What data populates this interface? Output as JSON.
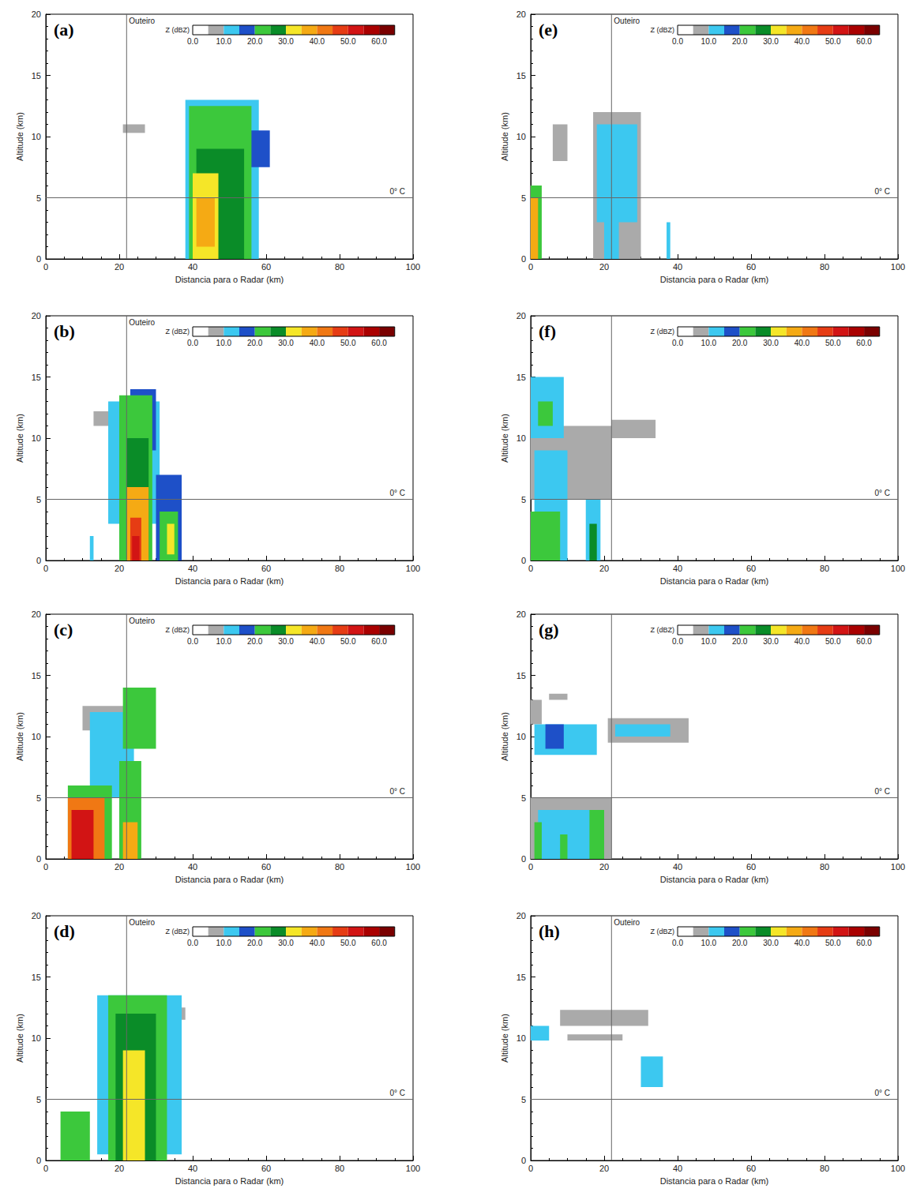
{
  "chart_data": [
    {
      "type": "heatmap",
      "panel": "(a)",
      "xlabel": "Distancia para o Radar (km)",
      "ylabel": "Altitude (km)",
      "xlim": [
        0,
        100
      ],
      "xticks": [
        0,
        20,
        40,
        60,
        80,
        100
      ],
      "ylim": [
        0,
        20
      ],
      "yticks": [
        0,
        5,
        10,
        15,
        20
      ],
      "vline": {
        "x": 22,
        "label": "Outeiro"
      },
      "hline": {
        "y": 5,
        "label": "0° C"
      },
      "colorbar": {
        "label": "Z (dBZ)",
        "bins": [
          0,
          5,
          10,
          15,
          20,
          25,
          30,
          35,
          40,
          45,
          50,
          55,
          60,
          65
        ],
        "colors": [
          "#ffffff",
          "#aaaaaa",
          "#3cc8f0",
          "#1e50c8",
          "#3cc83c",
          "#0a8c28",
          "#f5e628",
          "#f5aa14",
          "#f07814",
          "#e63c14",
          "#d21414",
          "#aa0000",
          "#7a0000"
        ],
        "ticks": [
          {
            "value": 0,
            "label": "0.0"
          },
          {
            "value": 10,
            "label": "10.0"
          },
          {
            "value": 20,
            "label": "20.0"
          },
          {
            "value": 30,
            "label": "30.0"
          },
          {
            "value": 40,
            "label": "40.0"
          },
          {
            "value": 50,
            "label": "50.0"
          },
          {
            "value": 60,
            "label": "60.0"
          }
        ]
      },
      "cells": [
        [
          21,
          27,
          10.3,
          11,
          7
        ],
        [
          38,
          58,
          0,
          13,
          12
        ],
        [
          52,
          61,
          7.5,
          10.5,
          17
        ],
        [
          39,
          56,
          0,
          12.5,
          22
        ],
        [
          41,
          54,
          0,
          9,
          27
        ],
        [
          40,
          47,
          0,
          7,
          32
        ],
        [
          41,
          46,
          1,
          5,
          37
        ]
      ]
    },
    {
      "type": "heatmap",
      "panel": "(b)",
      "xlabel": "Distancia para o Radar (km)",
      "ylabel": "Altitude (km)",
      "xlim": [
        0,
        100
      ],
      "xticks": [
        0,
        20,
        40,
        60,
        80,
        100
      ],
      "ylim": [
        0,
        20
      ],
      "yticks": [
        0,
        5,
        10,
        15,
        20
      ],
      "vline": {
        "x": 22,
        "label": "Outeiro"
      },
      "hline": {
        "y": 5,
        "label": "0° C"
      },
      "colorbar": {
        "label": "Z (dBZ)",
        "bins": [
          0,
          5,
          10,
          15,
          20,
          25,
          30,
          35,
          40,
          45,
          50,
          55,
          60,
          65
        ],
        "colors": [
          "#ffffff",
          "#aaaaaa",
          "#3cc8f0",
          "#1e50c8",
          "#3cc83c",
          "#0a8c28",
          "#f5e628",
          "#f5aa14",
          "#f07814",
          "#e63c14",
          "#d21414",
          "#aa0000",
          "#7a0000"
        ],
        "ticks": [
          {
            "value": 0,
            "label": "0.0"
          },
          {
            "value": 10,
            "label": "10.0"
          },
          {
            "value": 20,
            "label": "20.0"
          },
          {
            "value": 30,
            "label": "30.0"
          },
          {
            "value": 40,
            "label": "40.0"
          },
          {
            "value": 50,
            "label": "50.0"
          },
          {
            "value": 60,
            "label": "60.0"
          }
        ]
      },
      "cells": [
        [
          13,
          25,
          11,
          12.2,
          7
        ],
        [
          17,
          31,
          3,
          13,
          12
        ],
        [
          23,
          30,
          9,
          14,
          17
        ],
        [
          20,
          29,
          0,
          13.5,
          22
        ],
        [
          22,
          28,
          0,
          10,
          27
        ],
        [
          30,
          37,
          0,
          7,
          17
        ],
        [
          31,
          36,
          0,
          4,
          22
        ],
        [
          33,
          35,
          0.5,
          3,
          32
        ],
        [
          22,
          28,
          0,
          6,
          37
        ],
        [
          23,
          26,
          0,
          3.5,
          47
        ],
        [
          23.5,
          25.5,
          0,
          2,
          52
        ],
        [
          12,
          13,
          0,
          2,
          12
        ]
      ]
    },
    {
      "type": "heatmap",
      "panel": "(c)",
      "xlabel": "Distancia para o Radar (km)",
      "ylabel": "Altitude (km)",
      "xlim": [
        0,
        100
      ],
      "xticks": [
        0,
        20,
        40,
        60,
        80,
        100
      ],
      "ylim": [
        0,
        20
      ],
      "yticks": [
        0,
        5,
        10,
        15,
        20
      ],
      "vline": {
        "x": 22,
        "label": "Outeiro"
      },
      "hline": {
        "y": 5,
        "label": "0° C"
      },
      "colorbar": {
        "label": "Z (dBZ)",
        "bins": [
          0,
          5,
          10,
          15,
          20,
          25,
          30,
          35,
          40,
          45,
          50,
          55,
          60,
          65
        ],
        "colors": [
          "#ffffff",
          "#aaaaaa",
          "#3cc8f0",
          "#1e50c8",
          "#3cc83c",
          "#0a8c28",
          "#f5e628",
          "#f5aa14",
          "#f07814",
          "#e63c14",
          "#d21414",
          "#aa0000",
          "#7a0000"
        ],
        "ticks": [
          {
            "value": 0,
            "label": "0.0"
          },
          {
            "value": 10,
            "label": "10.0"
          },
          {
            "value": 20,
            "label": "20.0"
          },
          {
            "value": 30,
            "label": "30.0"
          },
          {
            "value": 40,
            "label": "40.0"
          },
          {
            "value": 50,
            "label": "50.0"
          },
          {
            "value": 60,
            "label": "60.0"
          }
        ]
      },
      "cells": [
        [
          10,
          25,
          10.5,
          12.5,
          7
        ],
        [
          12,
          24,
          5,
          12,
          12
        ],
        [
          21,
          30,
          9,
          14,
          22
        ],
        [
          20,
          26,
          0,
          8,
          22
        ],
        [
          6,
          18,
          0,
          6,
          22
        ],
        [
          6,
          16,
          0,
          5,
          42
        ],
        [
          7,
          13,
          0,
          4,
          52
        ],
        [
          21,
          25,
          0,
          3,
          37
        ]
      ]
    },
    {
      "type": "heatmap",
      "panel": "(d)",
      "xlabel": "Distancia para o Radar (km)",
      "ylabel": "Altitude (km)",
      "xlim": [
        0,
        100
      ],
      "xticks": [
        0,
        20,
        40,
        60,
        80,
        100
      ],
      "ylim": [
        0,
        20
      ],
      "yticks": [
        0,
        5,
        10,
        15,
        20
      ],
      "vline": {
        "x": 22,
        "label": "Outeiro"
      },
      "hline": {
        "y": 5,
        "label": "0° C"
      },
      "colorbar": {
        "label": "Z (dBZ)",
        "bins": [
          0,
          5,
          10,
          15,
          20,
          25,
          30,
          35,
          40,
          45,
          50,
          55,
          60,
          65
        ],
        "colors": [
          "#ffffff",
          "#aaaaaa",
          "#3cc8f0",
          "#1e50c8",
          "#3cc83c",
          "#0a8c28",
          "#f5e628",
          "#f5aa14",
          "#f07814",
          "#e63c14",
          "#d21414",
          "#aa0000",
          "#7a0000"
        ],
        "ticks": [
          {
            "value": 0,
            "label": "0.0"
          },
          {
            "value": 10,
            "label": "10.0"
          },
          {
            "value": 20,
            "label": "20.0"
          },
          {
            "value": 30,
            "label": "30.0"
          },
          {
            "value": 40,
            "label": "40.0"
          },
          {
            "value": 50,
            "label": "50.0"
          },
          {
            "value": 60,
            "label": "60.0"
          }
        ]
      },
      "cells": [
        [
          28,
          38,
          11.5,
          12.5,
          7
        ],
        [
          14,
          37,
          0.5,
          13.5,
          12
        ],
        [
          17,
          33,
          0,
          13.5,
          22
        ],
        [
          19,
          30,
          0,
          12,
          27
        ],
        [
          21,
          27,
          0,
          9,
          32
        ],
        [
          4,
          12,
          0,
          4,
          22
        ]
      ]
    },
    {
      "type": "heatmap",
      "panel": "(e)",
      "xlabel": "Distancia para o Radar (km)",
      "ylabel": "Altitude (km)",
      "xlim": [
        0,
        100
      ],
      "xticks": [
        0,
        20,
        40,
        60,
        80,
        100
      ],
      "ylim": [
        0,
        20
      ],
      "yticks": [
        0,
        5,
        10,
        15,
        20
      ],
      "vline": {
        "x": 22,
        "label": "Outeiro"
      },
      "hline": {
        "y": 5,
        "label": "0° C"
      },
      "colorbar": {
        "label": "Z (dBZ)",
        "bins": [
          0,
          5,
          10,
          15,
          20,
          25,
          30,
          35,
          40,
          45,
          50,
          55,
          60,
          65
        ],
        "colors": [
          "#ffffff",
          "#aaaaaa",
          "#3cc8f0",
          "#1e50c8",
          "#3cc83c",
          "#0a8c28",
          "#f5e628",
          "#f5aa14",
          "#f07814",
          "#e63c14",
          "#d21414",
          "#aa0000",
          "#7a0000"
        ],
        "ticks": [
          {
            "value": 0,
            "label": "0.0"
          },
          {
            "value": 10,
            "label": "10.0"
          },
          {
            "value": 20,
            "label": "20.0"
          },
          {
            "value": 30,
            "label": "30.0"
          },
          {
            "value": 40,
            "label": "40.0"
          },
          {
            "value": 50,
            "label": "50.0"
          },
          {
            "value": 60,
            "label": "60.0"
          }
        ]
      },
      "cells": [
        [
          0,
          3,
          0,
          6,
          22
        ],
        [
          0,
          2,
          0,
          5,
          37
        ],
        [
          6,
          10,
          8,
          11,
          7
        ],
        [
          17,
          30,
          0,
          12,
          7
        ],
        [
          18,
          29,
          3,
          11,
          12
        ],
        [
          20,
          24,
          0,
          8,
          14
        ],
        [
          37,
          38,
          0,
          3,
          14
        ]
      ]
    },
    {
      "type": "heatmap",
      "panel": "(f)",
      "xlabel": "Distancia para o Radar (km)",
      "ylabel": "Altitude (km)",
      "xlim": [
        0,
        100
      ],
      "xticks": [
        0,
        20,
        40,
        60,
        80,
        100
      ],
      "ylim": [
        0,
        20
      ],
      "yticks": [
        0,
        5,
        10,
        15,
        20
      ],
      "vline": {
        "x": 22
      },
      "hline": {
        "y": 5,
        "label": "0° C"
      },
      "colorbar": {
        "label": "Z (dBZ)",
        "bins": [
          0,
          5,
          10,
          15,
          20,
          25,
          30,
          35,
          40,
          45,
          50,
          55,
          60,
          65
        ],
        "colors": [
          "#ffffff",
          "#aaaaaa",
          "#3cc8f0",
          "#1e50c8",
          "#3cc83c",
          "#0a8c28",
          "#f5e628",
          "#f5aa14",
          "#f07814",
          "#e63c14",
          "#d21414",
          "#aa0000",
          "#7a0000"
        ],
        "ticks": [
          {
            "value": 0,
            "label": "0.0"
          },
          {
            "value": 10,
            "label": "10.0"
          },
          {
            "value": 20,
            "label": "20.0"
          },
          {
            "value": 30,
            "label": "30.0"
          },
          {
            "value": 40,
            "label": "40.0"
          },
          {
            "value": 50,
            "label": "50.0"
          },
          {
            "value": 60,
            "label": "60.0"
          }
        ]
      },
      "cells": [
        [
          0,
          22,
          5,
          11,
          7
        ],
        [
          22,
          34,
          10,
          11.5,
          7
        ],
        [
          0,
          9,
          10,
          15,
          12
        ],
        [
          2,
          6,
          11,
          13,
          22
        ],
        [
          1,
          10,
          0,
          9,
          12
        ],
        [
          0,
          8,
          0,
          4,
          22
        ],
        [
          15,
          19,
          0,
          5,
          14
        ],
        [
          16,
          18,
          0,
          3,
          27
        ]
      ]
    },
    {
      "type": "heatmap",
      "panel": "(g)",
      "xlabel": "Distancia para o Radar (km)",
      "ylabel": "Altitude (km)",
      "xlim": [
        0,
        100
      ],
      "xticks": [
        0,
        20,
        40,
        60,
        80,
        100
      ],
      "ylim": [
        0,
        20
      ],
      "yticks": [
        0,
        5,
        10,
        15,
        20
      ],
      "vline": {
        "x": 22
      },
      "hline": {
        "y": 5,
        "label": "0° C"
      },
      "colorbar": {
        "label": "Z (dBZ)",
        "bins": [
          0,
          5,
          10,
          15,
          20,
          25,
          30,
          35,
          40,
          45,
          50,
          55,
          60,
          65
        ],
        "colors": [
          "#ffffff",
          "#aaaaaa",
          "#3cc8f0",
          "#1e50c8",
          "#3cc83c",
          "#0a8c28",
          "#f5e628",
          "#f5aa14",
          "#f07814",
          "#e63c14",
          "#d21414",
          "#aa0000",
          "#7a0000"
        ],
        "ticks": [
          {
            "value": 0,
            "label": "0.0"
          },
          {
            "value": 10,
            "label": "10.0"
          },
          {
            "value": 20,
            "label": "20.0"
          },
          {
            "value": 30,
            "label": "30.0"
          },
          {
            "value": 40,
            "label": "40.0"
          },
          {
            "value": 50,
            "label": "50.0"
          },
          {
            "value": 60,
            "label": "60.0"
          }
        ]
      },
      "cells": [
        [
          0,
          3,
          11,
          13,
          7
        ],
        [
          5,
          10,
          13,
          13.5,
          7
        ],
        [
          21,
          43,
          9.5,
          11.5,
          7
        ],
        [
          1,
          18,
          8.5,
          11,
          12
        ],
        [
          4,
          9,
          9,
          11,
          17
        ],
        [
          23,
          38,
          10,
          11,
          12
        ],
        [
          0,
          22,
          0,
          5,
          7
        ],
        [
          2,
          20,
          0,
          4,
          12
        ],
        [
          1,
          3,
          0,
          3,
          22
        ],
        [
          16,
          20,
          0,
          4,
          22
        ],
        [
          8,
          10,
          0,
          2,
          22
        ]
      ]
    },
    {
      "type": "heatmap",
      "panel": "(h)",
      "xlabel": "Distancia para o Radar (km)",
      "ylabel": "Altitude (km)",
      "xlim": [
        0,
        100
      ],
      "xticks": [
        0,
        20,
        40,
        60,
        80,
        100
      ],
      "ylim": [
        0,
        20
      ],
      "yticks": [
        0,
        5,
        10,
        15,
        20
      ],
      "vline": {
        "x": 22,
        "label": "Outeiro"
      },
      "hline": {
        "y": 5,
        "label": "0° C"
      },
      "colorbar": {
        "label": "Z (dBZ)",
        "bins": [
          0,
          5,
          10,
          15,
          20,
          25,
          30,
          35,
          40,
          45,
          50,
          55,
          60,
          65
        ],
        "colors": [
          "#ffffff",
          "#aaaaaa",
          "#3cc8f0",
          "#1e50c8",
          "#3cc83c",
          "#0a8c28",
          "#f5e628",
          "#f5aa14",
          "#f07814",
          "#e63c14",
          "#d21414",
          "#aa0000",
          "#7a0000"
        ],
        "ticks": [
          {
            "value": 0,
            "label": "0.0"
          },
          {
            "value": 10,
            "label": "10.0"
          },
          {
            "value": 20,
            "label": "20.0"
          },
          {
            "value": 30,
            "label": "30.0"
          },
          {
            "value": 40,
            "label": "40.0"
          },
          {
            "value": 50,
            "label": "50.0"
          },
          {
            "value": 60,
            "label": "60.0"
          }
        ]
      },
      "cells": [
        [
          8,
          32,
          11,
          12.3,
          7
        ],
        [
          10,
          25,
          9.8,
          10.3,
          7
        ],
        [
          0,
          5,
          9.8,
          11,
          12
        ],
        [
          30,
          36,
          6,
          8.5,
          14
        ]
      ]
    }
  ]
}
